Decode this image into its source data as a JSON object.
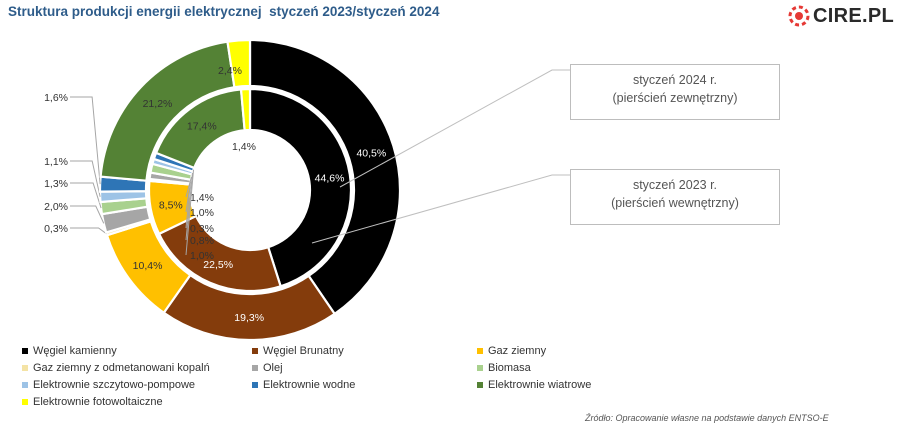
{
  "header": {
    "title": "Struktura produkcji energii elektrycznej  styczeń 2023/styczeń 2024",
    "logo_text": "CIRE.PL",
    "logo_color": "#e53935"
  },
  "callouts": {
    "outer": [
      "styczeń 2024 r.",
      "(pierścień zewnętrzny)"
    ],
    "inner": [
      "styczeń 2023 r.",
      "(pierścień wewnętrzny)"
    ]
  },
  "source": "Źródło: Opracowanie własne na podstawie danych ENTSO-E",
  "chart_data": {
    "type": "pie",
    "subtype": "doughnut",
    "categories": [
      "Węgiel kamienny",
      "Węgiel Brunatny",
      "Gaz  ziemny",
      "Gaz ziemny z odmetanowani kopalń",
      "Olej",
      "Biomasa",
      "Elektrownie szczytowo-pompowe",
      "Elektrownie wodne",
      "Elektrownie wiatrowe",
      "Elektrownie fotowoltaiczne"
    ],
    "colors": [
      "#000000",
      "#843c0c",
      "#ffc000",
      "#f4e3a5",
      "#a6a6a6",
      "#a9d18e",
      "#9dc3e6",
      "#2e75b6",
      "#548235",
      "#ffff00"
    ],
    "series": [
      {
        "name": "styczeń 2024 r.",
        "ring": "outer",
        "values": [
          40.5,
          19.3,
          10.4,
          0.3,
          2.0,
          1.3,
          1.1,
          1.6,
          21.2,
          2.4
        ],
        "labels": [
          "40,5%",
          "19,3%",
          "10,4%",
          "0,3%",
          "2,0%",
          "1,3%",
          "1,1%",
          "1,6%",
          "21,2%",
          "2,4%"
        ]
      },
      {
        "name": "styczeń 2023 r.",
        "ring": "inner",
        "values": [
          44.6,
          22.5,
          8.5,
          0.3,
          1.0,
          1.4,
          0.8,
          1.0,
          17.4,
          1.4
        ],
        "labels": [
          "44,6%",
          "22,5%",
          "8,5%",
          "0,3%",
          "1,0%",
          "1,4%",
          "0,8%",
          "1,0%",
          "17,4%",
          "1,4%"
        ]
      }
    ],
    "legend_position": "bottom"
  }
}
